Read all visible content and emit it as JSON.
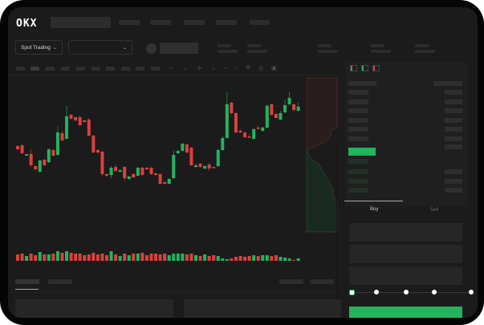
{
  "header": {
    "logo": "OKX"
  },
  "controls": {
    "market_type": "Spot Trading",
    "pair_select": ""
  },
  "order_panel": {
    "buy_tab": "Buy",
    "sell_tab": "Sell",
    "leverage_steps": 5,
    "selected_step": 0
  },
  "colors": {
    "up": "#22b35e",
    "down": "#d9413f",
    "background": "#1b1b1b"
  },
  "icons": [
    "chevron-down-icon",
    "indicator-icon",
    "line-icon",
    "ruler-icon",
    "camera-icon",
    "settings-icon",
    "fullscreen-icon",
    "orderbook-both-icon",
    "orderbook-bids-icon",
    "orderbook-asks-icon"
  ],
  "chart_data": {
    "type": "candlestick",
    "candles": [
      [
        118,
        114,
        119,
        113
      ],
      [
        119,
        109,
        120,
        108
      ],
      [
        106,
        108,
        108,
        106
      ],
      [
        108,
        94,
        114,
        92
      ],
      [
        93,
        89,
        94,
        88
      ],
      [
        86,
        100,
        101,
        85
      ],
      [
        101,
        94,
        102,
        93
      ],
      [
        98,
        114,
        115,
        97
      ],
      [
        113,
        106,
        114,
        105
      ],
      [
        107,
        135,
        143,
        106
      ],
      [
        134,
        125,
        137,
        124
      ],
      [
        127,
        155,
        168,
        126
      ],
      [
        157,
        152,
        158,
        151
      ],
      [
        154,
        150,
        155,
        149
      ],
      [
        154,
        144,
        156,
        143
      ],
      [
        150,
        148,
        151,
        147
      ],
      [
        151,
        131,
        153,
        130
      ],
      [
        131,
        110,
        132,
        109
      ],
      [
        113,
        110,
        114,
        109
      ],
      [
        111,
        83,
        112,
        80
      ],
      [
        83,
        81,
        84,
        80
      ],
      [
        82,
        91,
        93,
        78
      ],
      [
        92,
        87,
        95,
        86
      ],
      [
        86,
        88,
        89,
        85
      ],
      [
        92,
        78,
        93,
        75
      ],
      [
        77,
        80,
        81,
        76
      ],
      [
        83,
        79,
        84,
        78
      ],
      [
        81,
        91,
        92,
        80
      ],
      [
        91,
        82,
        92,
        81
      ],
      [
        91,
        89,
        92,
        88
      ],
      [
        91,
        83,
        92,
        82
      ],
      [
        84,
        82,
        85,
        81
      ],
      [
        83,
        71,
        84,
        70
      ],
      [
        73,
        71,
        74,
        70
      ],
      [
        71,
        77,
        78,
        70
      ],
      [
        78,
        107,
        112,
        77
      ],
      [
        109,
        112,
        113,
        108
      ],
      [
        112,
        121,
        122,
        111
      ],
      [
        120,
        110,
        121,
        109
      ],
      [
        116,
        94,
        117,
        93
      ],
      [
        92,
        94,
        96,
        91
      ],
      [
        96,
        92,
        97,
        91
      ],
      [
        90,
        93,
        94,
        89
      ],
      [
        95,
        90,
        97,
        87
      ],
      [
        92,
        91,
        92,
        90
      ],
      [
        93,
        113,
        115,
        92
      ],
      [
        113,
        128,
        130,
        112
      ],
      [
        128,
        170,
        185,
        127
      ],
      [
        172,
        159,
        173,
        157
      ],
      [
        159,
        135,
        160,
        134
      ],
      [
        137,
        135,
        139,
        134
      ],
      [
        135,
        129,
        136,
        128
      ],
      [
        130,
        129,
        133,
        128
      ],
      [
        127,
        139,
        141,
        126
      ],
      [
        141,
        140,
        143,
        139
      ],
      [
        137,
        141,
        142,
        136
      ],
      [
        141,
        168,
        170,
        140
      ],
      [
        170,
        157,
        171,
        156
      ],
      [
        158,
        153,
        159,
        152
      ],
      [
        151,
        159,
        162,
        150
      ],
      [
        160,
        169,
        176,
        159
      ],
      [
        170,
        178,
        185,
        169
      ],
      [
        170,
        163,
        171,
        161
      ],
      [
        162,
        167,
        172,
        161
      ]
    ],
    "volumes": [
      8,
      9,
      6,
      9,
      7,
      11,
      8,
      8,
      9,
      12,
      10,
      12,
      10,
      9,
      9,
      7,
      8,
      10,
      8,
      9,
      7,
      12,
      8,
      6,
      9,
      7,
      9,
      9,
      10,
      7,
      9,
      9,
      8,
      9,
      7,
      9,
      9,
      9,
      8,
      9,
      7,
      6,
      8,
      6,
      7,
      6,
      3,
      2,
      3,
      5,
      6,
      5,
      6,
      7,
      6,
      7,
      7,
      6,
      7,
      5,
      4,
      3,
      1,
      3
    ],
    "price_scale": "none",
    "xlabel": "",
    "ylabel": ""
  }
}
